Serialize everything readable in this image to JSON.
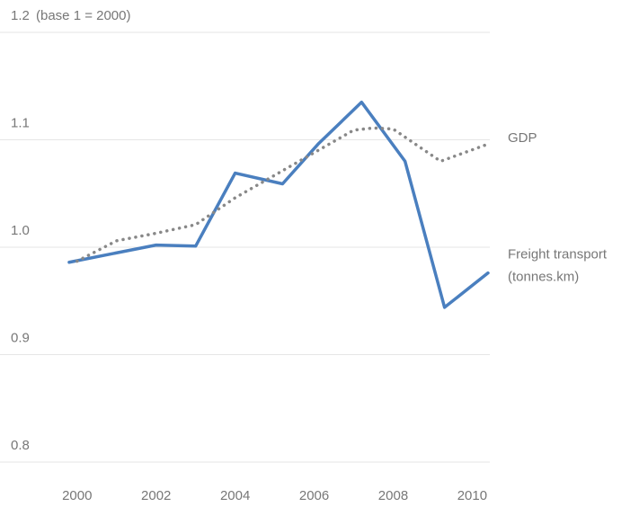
{
  "chart_data": {
    "type": "line",
    "y_axis_label": "(base 1 = 2000)",
    "xlim": [
      1999.8,
      2010.4
    ],
    "xticks": [
      2000,
      2002,
      2004,
      2006,
      2008,
      2010
    ],
    "ylim": [
      0.8,
      1.2
    ],
    "yticks": [
      0.8,
      0.9,
      {
        "value": 1,
        "label": "1.0"
      },
      1.1,
      1.2
    ],
    "grid": true,
    "series": [
      {
        "name": "Freight transport",
        "unit": "(tonnes.km)",
        "color": "#4a7fbf",
        "style": "solid",
        "x": [
          1999.8,
          2002,
          2003,
          2004,
          2005.2,
          2006.1,
          2007.2,
          2008.3,
          2009.3,
          2010.4
        ],
        "values": [
          0.986,
          1.002,
          1.001,
          1.069,
          1.059,
          1.096,
          1.135,
          1.08,
          0.944,
          0.976
        ]
      },
      {
        "name": "GDP",
        "color": "#888888",
        "style": "dotted",
        "x": [
          2000,
          2001,
          2002,
          2003,
          2004,
          2005,
          2006,
          2007,
          2007.5,
          2008,
          2009.2,
          2010.4
        ],
        "values": [
          0.987,
          1.006,
          1.013,
          1.021,
          1.046,
          1.067,
          1.088,
          1.109,
          1.111,
          1.11,
          1.08,
          1.096
        ]
      }
    ]
  }
}
